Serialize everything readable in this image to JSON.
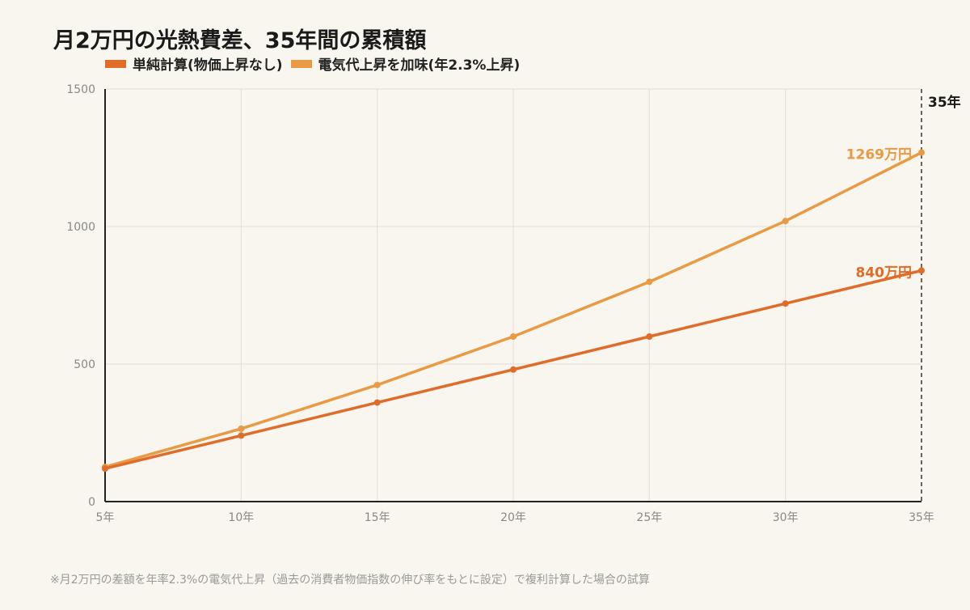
{
  "title": "月2万円の光熱費差、35年間の累積額",
  "footnote": "※月2万円の差額を年率2.3%の電気代上昇（過去の消費者物価指数の伸び率をもとに設定）で複利計算した場合の試算",
  "colors": {
    "background": "#f9f5ef",
    "series_simple": "#e06c2a",
    "series_inflation": "#e89a44",
    "grid": "#e2ddd6",
    "axis": "#222222",
    "tick": "#888888"
  },
  "chart_data": {
    "type": "line",
    "title": "月2万円の光熱費差、35年間の累積額",
    "x": [
      5,
      10,
      15,
      20,
      25,
      30,
      35
    ],
    "x_tick_labels": [
      "5年",
      "10年",
      "15年",
      "20年",
      "25年",
      "30年",
      "35年"
    ],
    "xlim": [
      5,
      35
    ],
    "ylim": [
      0,
      1500
    ],
    "y_ticks": [
      0,
      500,
      1000,
      1500
    ],
    "xlabel": "",
    "ylabel": "",
    "grid": true,
    "legend_position": "top-left",
    "series": [
      {
        "name": "単純計算(物価上昇なし)",
        "color": "#e06c2a",
        "values": [
          120,
          240,
          360,
          480,
          600,
          720,
          840
        ],
        "end_label": "840万円"
      },
      {
        "name": "電気代上昇を加味(年2.3%上昇)",
        "color": "#e89a44",
        "values": [
          126,
          265,
          424,
          600,
          799,
          1020,
          1269
        ],
        "end_label": "1269万円"
      }
    ],
    "annotations": [
      {
        "type": "vertical-dashed-line",
        "x": 35,
        "label": "35年"
      }
    ]
  }
}
